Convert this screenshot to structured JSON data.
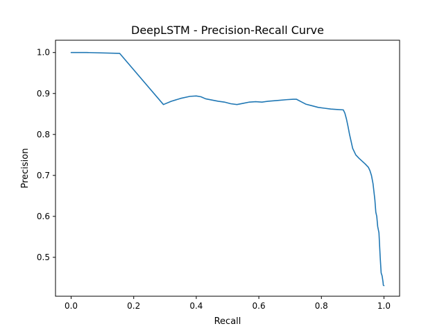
{
  "chart_data": {
    "type": "line",
    "title": "DeepLSTM - Precision-Recall Curve",
    "xlabel": "Recall",
    "ylabel": "Precision",
    "xlim": [
      -0.05,
      1.05
    ],
    "ylim": [
      0.405,
      1.03
    ],
    "xticks": [
      0.0,
      0.2,
      0.4,
      0.6,
      0.8,
      1.0
    ],
    "yticks": [
      0.5,
      0.6,
      0.7,
      0.8,
      0.9,
      1.0
    ],
    "xtick_labels": [
      "0.0",
      "0.2",
      "0.4",
      "0.6",
      "0.8",
      "1.0"
    ],
    "ytick_labels": [
      "0.5",
      "0.6",
      "0.7",
      "0.8",
      "0.9",
      "1.0"
    ],
    "grid": false,
    "legend": false,
    "series": [
      {
        "color": "#1f77b4",
        "x": [
          0.0,
          0.05,
          0.155,
          0.295,
          0.32,
          0.35,
          0.38,
          0.4,
          0.415,
          0.43,
          0.45,
          0.47,
          0.49,
          0.51,
          0.53,
          0.55,
          0.57,
          0.59,
          0.61,
          0.63,
          0.66,
          0.69,
          0.71,
          0.72,
          0.735,
          0.75,
          0.77,
          0.79,
          0.81,
          0.83,
          0.85,
          0.87,
          0.875,
          0.88,
          0.885,
          0.89,
          0.895,
          0.9,
          0.905,
          0.91,
          0.92,
          0.93,
          0.94,
          0.95,
          0.955,
          0.96,
          0.965,
          0.968,
          0.971,
          0.974,
          0.977,
          0.98,
          0.984,
          0.988,
          0.991,
          0.994,
          0.995,
          0.997,
          0.998,
          1.0
        ],
        "y": [
          1.0,
          1.0,
          0.998,
          0.873,
          0.881,
          0.888,
          0.893,
          0.894,
          0.892,
          0.887,
          0.884,
          0.881,
          0.879,
          0.875,
          0.873,
          0.876,
          0.879,
          0.88,
          0.879,
          0.881,
          0.883,
          0.885,
          0.886,
          0.886,
          0.88,
          0.874,
          0.87,
          0.866,
          0.864,
          0.862,
          0.861,
          0.86,
          0.852,
          0.838,
          0.82,
          0.8,
          0.783,
          0.766,
          0.758,
          0.75,
          0.742,
          0.735,
          0.728,
          0.72,
          0.712,
          0.7,
          0.68,
          0.66,
          0.64,
          0.61,
          0.6,
          0.575,
          0.56,
          0.5,
          0.462,
          0.455,
          0.45,
          0.44,
          0.432,
          0.431
        ]
      }
    ]
  }
}
